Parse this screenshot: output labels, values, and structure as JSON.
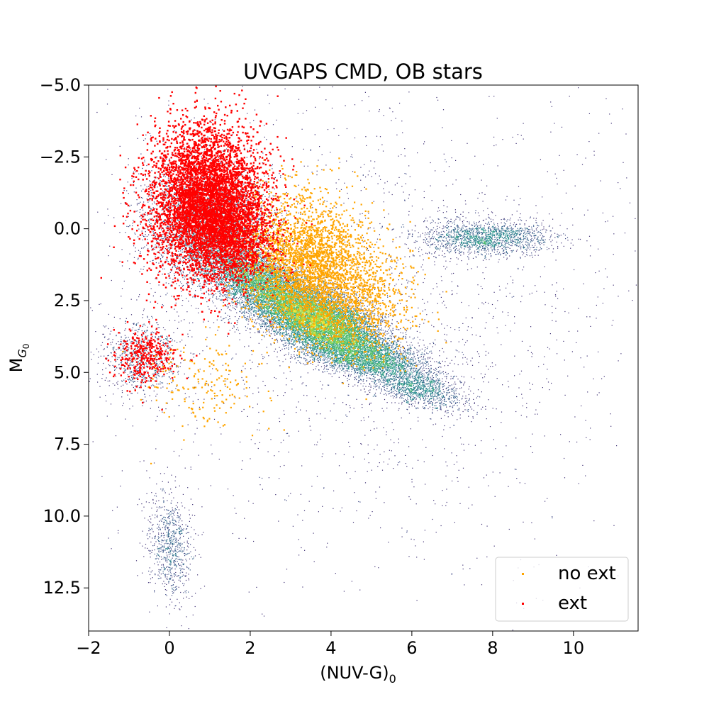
{
  "chart_data": {
    "type": "scatter",
    "title": "UVGAPS CMD, OB stars",
    "xlabel": "(NUV-G)",
    "xlabel_subscript": "0",
    "ylabel": "M",
    "ylabel_subscript": "G",
    "ylabel_subsubscript": "0",
    "xlim": [
      -2,
      11.6
    ],
    "ylim": [
      14,
      -5
    ],
    "y_inverted": true,
    "grid": false,
    "legend_position": "bottom-right",
    "x_ticks": [
      -2,
      0,
      2,
      4,
      6,
      8,
      10
    ],
    "x_tick_labels": [
      "−2",
      "0",
      "2",
      "4",
      "6",
      "8",
      "10"
    ],
    "y_ticks": [
      -5,
      -2.5,
      0,
      2.5,
      5,
      7.5,
      10,
      12.5
    ],
    "y_tick_labels": [
      "−5.0",
      "−2.5",
      "0.0",
      "2.5",
      "5.0",
      "7.5",
      "10.0",
      "12.5"
    ],
    "colors": {
      "density_low": "#440154",
      "density_mid": "#21918c",
      "density_high": "#fde725",
      "no_ext": "#ffa500",
      "ext": "#ff0000"
    },
    "series": [
      {
        "kind": "density",
        "description_components": [
          {
            "center": [
              3.6,
              3.1
            ],
            "spread": [
              0.9,
              0.55
            ],
            "tilt": 0.45,
            "weight": 0.34
          },
          {
            "center": [
              2.2,
              1.8
            ],
            "spread": [
              0.7,
              0.5
            ],
            "tilt": 0.5,
            "weight": 0.12
          },
          {
            "center": [
              4.8,
              4.4
            ],
            "spread": [
              0.9,
              0.4
            ],
            "tilt": 0.35,
            "weight": 0.14
          },
          {
            "center": [
              1.0,
              0.0
            ],
            "spread": [
              0.9,
              1.2
            ],
            "tilt": 0.6,
            "weight": 0.16
          },
          {
            "center": [
              7.8,
              0.3
            ],
            "spread": [
              0.8,
              0.3
            ],
            "tilt": 0.0,
            "weight": 0.06
          },
          {
            "center": [
              -0.7,
              4.5
            ],
            "spread": [
              0.5,
              0.7
            ],
            "tilt": 0.0,
            "weight": 0.03
          },
          {
            "center": [
              0.0,
              11.0
            ],
            "spread": [
              0.9,
              0.9
            ],
            "tilt": 1.5,
            "weight": 0.03
          },
          {
            "center": [
              6.2,
              5.6
            ],
            "spread": [
              0.6,
              0.3
            ],
            "tilt": 0.3,
            "weight": 0.04
          },
          {
            "center": [
              5.0,
              3.0
            ],
            "spread": [
              3.5,
              4.5
            ],
            "tilt": 0.0,
            "weight": 0.08
          }
        ]
      },
      {
        "name": "no ext",
        "kind": "points",
        "color": "#ffa500",
        "components": [
          {
            "center": [
              3.4,
              1.2
            ],
            "spread": [
              0.9,
              1.2
            ],
            "tilt": 0.4,
            "weight": 0.75
          },
          {
            "center": [
              4.6,
              2.5
            ],
            "spread": [
              0.8,
              1.0
            ],
            "tilt": 0.3,
            "weight": 0.2
          },
          {
            "center": [
              0.8,
              5.5
            ],
            "spread": [
              0.8,
              0.9
            ],
            "tilt": 0.0,
            "weight": 0.05
          }
        ]
      },
      {
        "name": "ext",
        "kind": "points",
        "color": "#ff0000",
        "components": [
          {
            "center": [
              0.9,
              -1.0
            ],
            "spread": [
              0.8,
              1.5
            ],
            "tilt": 0.6,
            "weight": 0.8
          },
          {
            "center": [
              1.6,
              0.2
            ],
            "spread": [
              0.6,
              0.8
            ],
            "tilt": 0.5,
            "weight": 0.15
          },
          {
            "center": [
              -0.6,
              4.4
            ],
            "spread": [
              0.4,
              0.5
            ],
            "tilt": 0.0,
            "weight": 0.05
          }
        ]
      }
    ]
  }
}
